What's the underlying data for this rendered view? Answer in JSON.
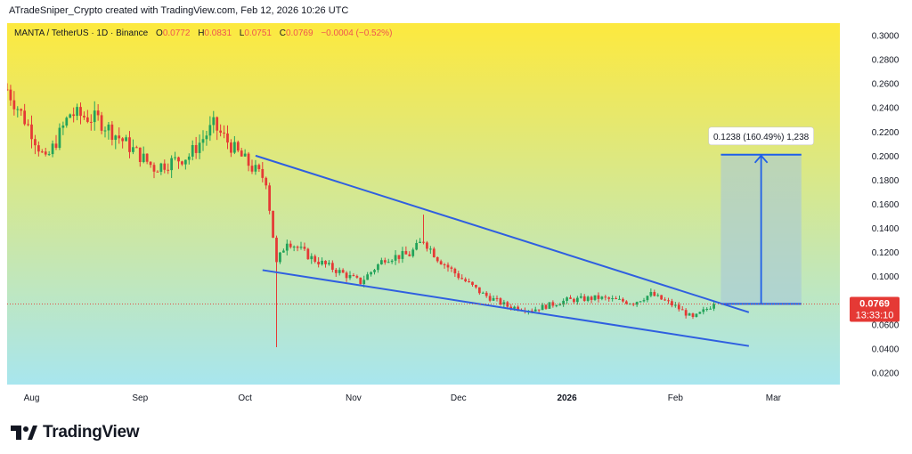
{
  "header": {
    "attribution": "ATradeSniper_Crypto created with TradingView.com, Feb 12, 2026 10:26 UTC"
  },
  "symbol_bar": {
    "symbol": "MANTA / TetherUS · 1D · Binance",
    "open_key": "O",
    "open": "0.0772",
    "high_key": "H",
    "high": "0.0831",
    "low_key": "L",
    "low": "0.0751",
    "close_key": "C",
    "close": "0.0769",
    "change": "−0.0004 (−0.52%)"
  },
  "price_label": {
    "price": "0.0769",
    "countdown": "13:33:10"
  },
  "measure_label": "0.1238 (160.49%) 1,238",
  "footer": {
    "brand": "TradingView"
  },
  "colors": {
    "bg_top": "#fde93e",
    "bg_bottom": "#a8e6ee",
    "bull": "#22a35a",
    "bear": "#e53935",
    "trendline": "#2f5fe0",
    "price_tag": "#e53935",
    "measure_fill": "#a7c8d8",
    "measure_line": "#1f5fe8"
  },
  "chart_data": {
    "type": "candlestick",
    "y_axis": {
      "min": 0.01,
      "max": 0.31,
      "ticks": [
        0.02,
        0.04,
        0.06,
        0.08,
        0.1,
        0.12,
        0.14,
        0.16,
        0.18,
        0.2,
        0.22,
        0.24,
        0.26,
        0.28,
        0.3
      ],
      "tick_labels": [
        "0.0200",
        "0.0400",
        "0.0600",
        "0.0800",
        "0.1000",
        "0.1200",
        "0.1400",
        "0.1600",
        "0.1800",
        "0.2000",
        "0.2200",
        "0.2400",
        "0.2600",
        "0.2800",
        "0.3000"
      ]
    },
    "x_axis": {
      "start": "2025-07-25",
      "end": "2026-03-20",
      "labels": [
        {
          "date": "2025-08-01",
          "label": "Aug"
        },
        {
          "date": "2025-09-01",
          "label": "Sep"
        },
        {
          "date": "2025-10-01",
          "label": "Oct"
        },
        {
          "date": "2025-11-01",
          "label": "Nov"
        },
        {
          "date": "2025-12-01",
          "label": "Dec"
        },
        {
          "date": "2026-01-01",
          "label": "2026"
        },
        {
          "date": "2026-02-01",
          "label": "Feb"
        },
        {
          "date": "2026-03-01",
          "label": "Mar"
        }
      ]
    },
    "close_anchors": [
      [
        "2025-07-25",
        0.255
      ],
      [
        "2025-08-01",
        0.22
      ],
      [
        "2025-08-05",
        0.195
      ],
      [
        "2025-08-12",
        0.235
      ],
      [
        "2025-08-20",
        0.23
      ],
      [
        "2025-08-28",
        0.21
      ],
      [
        "2025-09-05",
        0.19
      ],
      [
        "2025-09-15",
        0.2
      ],
      [
        "2025-09-22",
        0.225
      ],
      [
        "2025-09-28",
        0.205
      ],
      [
        "2025-10-03",
        0.19
      ],
      [
        "2025-10-07",
        0.18
      ],
      [
        "2025-10-10",
        0.11
      ],
      [
        "2025-10-13",
        0.13
      ],
      [
        "2025-10-20",
        0.115
      ],
      [
        "2025-10-27",
        0.105
      ],
      [
        "2025-11-03",
        0.095
      ],
      [
        "2025-11-10",
        0.115
      ],
      [
        "2025-11-17",
        0.118
      ],
      [
        "2025-11-21",
        0.13
      ],
      [
        "2025-11-25",
        0.115
      ],
      [
        "2025-12-01",
        0.1
      ],
      [
        "2025-12-08",
        0.085
      ],
      [
        "2025-12-15",
        0.075
      ],
      [
        "2025-12-22",
        0.072
      ],
      [
        "2026-01-01",
        0.08
      ],
      [
        "2026-01-10",
        0.082
      ],
      [
        "2026-01-20",
        0.078
      ],
      [
        "2026-01-25",
        0.085
      ],
      [
        "2026-02-01",
        0.075
      ],
      [
        "2026-02-06",
        0.065
      ],
      [
        "2026-02-12",
        0.0769
      ]
    ],
    "trendlines": [
      {
        "name": "upper",
        "from": [
          "2025-10-04",
          0.2
        ],
        "to": [
          "2026-02-22",
          0.07
        ]
      },
      {
        "name": "lower",
        "from": [
          "2025-10-06",
          0.105
        ],
        "to": [
          "2026-02-22",
          0.042
        ]
      }
    ],
    "measure": {
      "from_date": "2026-02-14",
      "to_date": "2026-03-09",
      "from_price": 0.077,
      "to_price": 0.2008
    },
    "last_price": 0.0769
  }
}
